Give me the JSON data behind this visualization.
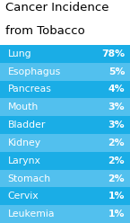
{
  "title_line1": "Cancer Incidence",
  "title_line2": "from Tobacco",
  "rows": [
    {
      "label": "Lung",
      "value": "78%"
    },
    {
      "label": "Esophagus",
      "value": "5%"
    },
    {
      "label": "Pancreas",
      "value": "4%"
    },
    {
      "label": "Mouth",
      "value": "3%"
    },
    {
      "label": "Bladder",
      "value": "3%"
    },
    {
      "label": "Kidney",
      "value": "2%"
    },
    {
      "label": "Larynx",
      "value": "2%"
    },
    {
      "label": "Stomach",
      "value": "2%"
    },
    {
      "label": "Cervix",
      "value": "1%"
    },
    {
      "label": "Leukemia",
      "value": "1%"
    }
  ],
  "row_colors": [
    "#1aade6",
    "#52c0ee",
    "#1aade6",
    "#52c0ee",
    "#1aade6",
    "#52c0ee",
    "#1aade6",
    "#52c0ee",
    "#1aade6",
    "#52c0ee"
  ],
  "title_color": "#000000",
  "text_color": "#ffffff",
  "title_fontsize": 9.5,
  "row_fontsize": 7.8,
  "background_color": "#ffffff",
  "fig_width": 1.45,
  "fig_height": 2.48,
  "dpi": 100
}
